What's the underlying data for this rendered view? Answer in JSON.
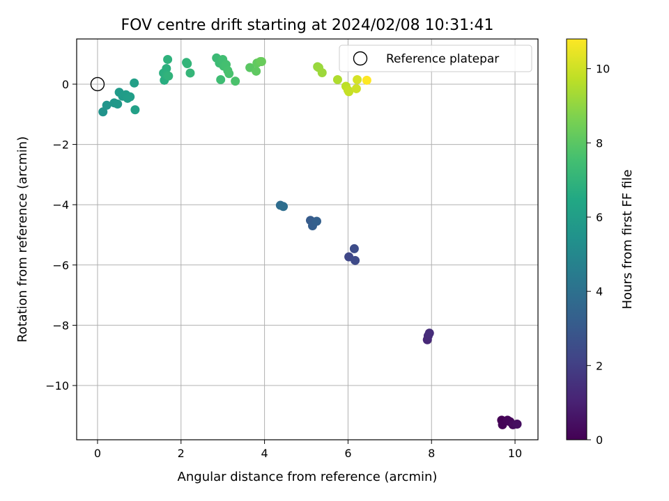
{
  "chart_data": {
    "type": "scatter",
    "title": "FOV centre drift starting at 2024/02/08 10:31:41",
    "xlabel": "Angular distance from reference (arcmin)",
    "ylabel": "Rotation from reference (arcmin)",
    "xlim": [
      -0.5,
      10.55
    ],
    "ylim": [
      -11.8,
      1.5
    ],
    "xticks": [
      0,
      2,
      4,
      6,
      8,
      10
    ],
    "yticks": [
      0,
      -2,
      -4,
      -6,
      -8,
      -10
    ],
    "xtick_labels": [
      "0",
      "2",
      "4",
      "6",
      "8",
      "10"
    ],
    "ytick_labels": [
      "0",
      "−2",
      "−4",
      "−6",
      "−8",
      "−10"
    ],
    "grid": true,
    "legend": {
      "position": "top-right",
      "entries": [
        "Reference platepar"
      ]
    },
    "reference_point": {
      "x": 0,
      "y": 0
    },
    "colorbar": {
      "label": "Hours from first FF file",
      "range": [
        0,
        10.8
      ],
      "ticks": [
        0,
        2,
        4,
        6,
        8,
        10
      ],
      "tick_labels": [
        "0",
        "2",
        "4",
        "6",
        "8",
        "10"
      ],
      "colormap": "viridis"
    },
    "points": [
      {
        "x": 9.68,
        "y": -11.15,
        "t": 0.0
      },
      {
        "x": 9.7,
        "y": -11.3,
        "t": 0.1
      },
      {
        "x": 9.82,
        "y": -11.15,
        "t": 0.15
      },
      {
        "x": 9.88,
        "y": -11.2,
        "t": 0.2
      },
      {
        "x": 9.95,
        "y": -11.3,
        "t": 0.3
      },
      {
        "x": 10.05,
        "y": -11.28,
        "t": 0.4
      },
      {
        "x": 7.9,
        "y": -8.48,
        "t": 1.2
      },
      {
        "x": 7.92,
        "y": -8.35,
        "t": 1.3
      },
      {
        "x": 7.95,
        "y": -8.26,
        "t": 1.4
      },
      {
        "x": 6.02,
        "y": -5.73,
        "t": 2.3
      },
      {
        "x": 6.17,
        "y": -5.85,
        "t": 2.4
      },
      {
        "x": 6.15,
        "y": -5.46,
        "t": 2.5
      },
      {
        "x": 5.1,
        "y": -4.52,
        "t": 3.1
      },
      {
        "x": 5.15,
        "y": -4.7,
        "t": 3.2
      },
      {
        "x": 5.25,
        "y": -4.55,
        "t": 3.3
      },
      {
        "x": 4.38,
        "y": -4.02,
        "t": 3.8
      },
      {
        "x": 4.45,
        "y": -4.06,
        "t": 3.9
      },
      {
        "x": 0.13,
        "y": -0.92,
        "t": 5.5
      },
      {
        "x": 0.22,
        "y": -0.7,
        "t": 5.6
      },
      {
        "x": 0.4,
        "y": -0.62,
        "t": 5.7
      },
      {
        "x": 0.48,
        "y": -0.66,
        "t": 5.75
      },
      {
        "x": 0.52,
        "y": -0.27,
        "t": 5.8
      },
      {
        "x": 0.6,
        "y": -0.4,
        "t": 5.85
      },
      {
        "x": 0.68,
        "y": -0.35,
        "t": 5.9
      },
      {
        "x": 0.72,
        "y": -0.47,
        "t": 5.95
      },
      {
        "x": 0.78,
        "y": -0.42,
        "t": 6.0
      },
      {
        "x": 0.88,
        "y": 0.04,
        "t": 6.05
      },
      {
        "x": 0.9,
        "y": -0.85,
        "t": 6.1
      },
      {
        "x": 1.6,
        "y": 0.13,
        "t": 6.7
      },
      {
        "x": 1.58,
        "y": 0.37,
        "t": 6.75
      },
      {
        "x": 1.65,
        "y": 0.52,
        "t": 6.8
      },
      {
        "x": 1.66,
        "y": 0.3,
        "t": 6.85
      },
      {
        "x": 1.68,
        "y": 0.82,
        "t": 6.9
      },
      {
        "x": 1.7,
        "y": 0.27,
        "t": 6.95
      },
      {
        "x": 2.13,
        "y": 0.72,
        "t": 7.0
      },
      {
        "x": 2.15,
        "y": 0.68,
        "t": 7.05
      },
      {
        "x": 2.22,
        "y": 0.37,
        "t": 7.1
      },
      {
        "x": 2.85,
        "y": 0.87,
        "t": 7.3
      },
      {
        "x": 2.92,
        "y": 0.7,
        "t": 7.35
      },
      {
        "x": 2.95,
        "y": 0.15,
        "t": 7.4
      },
      {
        "x": 3.0,
        "y": 0.82,
        "t": 7.45
      },
      {
        "x": 3.02,
        "y": 0.6,
        "t": 7.5
      },
      {
        "x": 3.08,
        "y": 0.65,
        "t": 7.55
      },
      {
        "x": 3.12,
        "y": 0.45,
        "t": 7.6
      },
      {
        "x": 3.15,
        "y": 0.35,
        "t": 7.65
      },
      {
        "x": 3.3,
        "y": 0.1,
        "t": 7.7
      },
      {
        "x": 3.65,
        "y": 0.55,
        "t": 8.0
      },
      {
        "x": 3.8,
        "y": 0.43,
        "t": 8.1
      },
      {
        "x": 3.82,
        "y": 0.7,
        "t": 8.15
      },
      {
        "x": 3.9,
        "y": 0.75,
        "t": 8.25
      },
      {
        "x": 3.93,
        "y": 0.75,
        "t": 8.3
      },
      {
        "x": 5.27,
        "y": 0.58,
        "t": 9.1
      },
      {
        "x": 5.3,
        "y": 0.55,
        "t": 9.15
      },
      {
        "x": 5.38,
        "y": 0.38,
        "t": 9.2
      },
      {
        "x": 5.75,
        "y": 0.15,
        "t": 9.5
      },
      {
        "x": 5.95,
        "y": -0.07,
        "t": 9.7
      },
      {
        "x": 6.0,
        "y": -0.2,
        "t": 9.8
      },
      {
        "x": 6.02,
        "y": -0.25,
        "t": 9.85
      },
      {
        "x": 6.2,
        "y": -0.15,
        "t": 10.0
      },
      {
        "x": 6.22,
        "y": 0.15,
        "t": 10.1
      },
      {
        "x": 6.45,
        "y": 0.13,
        "t": 10.8
      }
    ]
  }
}
